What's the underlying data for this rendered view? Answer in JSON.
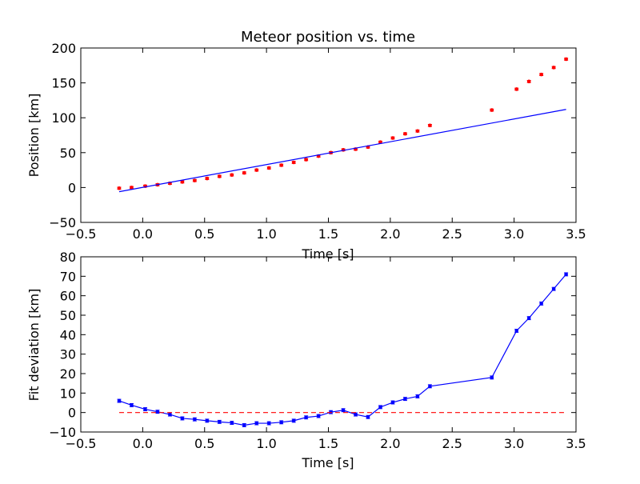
{
  "chart_data": [
    {
      "type": "scatter",
      "title": "Meteor position vs. time",
      "xlabel": "Time [s]",
      "ylabel": "Position [km]",
      "xlim": [
        -0.5,
        3.5
      ],
      "ylim": [
        -50,
        200
      ],
      "xticks": [
        "−0.5",
        "0.0",
        "0.5",
        "1.0",
        "1.5",
        "2.0",
        "2.5",
        "3.0",
        "3.5"
      ],
      "yticks": [
        "−50",
        "0",
        "50",
        "100",
        "150",
        "200"
      ],
      "grid": false,
      "series": [
        {
          "kind": "scatter-errorbar",
          "color": "#ff0000",
          "x": [
            -0.19,
            -0.09,
            0.02,
            0.12,
            0.22,
            0.32,
            0.42,
            0.52,
            0.62,
            0.72,
            0.82,
            0.92,
            1.02,
            1.12,
            1.22,
            1.32,
            1.42,
            1.52,
            1.62,
            1.72,
            1.82,
            1.92,
            2.02,
            2.12,
            2.22,
            2.32,
            2.82,
            3.02,
            3.12,
            3.22,
            3.32,
            3.42
          ],
          "y": [
            -1,
            0,
            2,
            4,
            6,
            8,
            10,
            13,
            16,
            18,
            21,
            25,
            28,
            32,
            36,
            40,
            45,
            50,
            54,
            55,
            58,
            65,
            71,
            77,
            81,
            89,
            111,
            141,
            152,
            162,
            172,
            184
          ],
          "yerr": 1.5
        },
        {
          "kind": "line",
          "color": "#0000ff",
          "x": [
            -0.19,
            3.42
          ],
          "y": [
            -6,
            112
          ]
        }
      ]
    },
    {
      "type": "line",
      "xlabel": "Time [s]",
      "ylabel": "Fit deviation [km]",
      "xlim": [
        -0.5,
        3.5
      ],
      "ylim": [
        -10,
        80
      ],
      "xticks": [
        "−0.5",
        "0.0",
        "0.5",
        "1.0",
        "1.5",
        "2.0",
        "2.5",
        "3.0",
        "3.5"
      ],
      "yticks": [
        "−10",
        "0",
        "10",
        "20",
        "30",
        "40",
        "50",
        "60",
        "70",
        "80"
      ],
      "grid": false,
      "series": [
        {
          "kind": "line-errorbar",
          "color": "#0000ff",
          "x": [
            -0.19,
            -0.09,
            0.02,
            0.12,
            0.22,
            0.32,
            0.42,
            0.52,
            0.62,
            0.72,
            0.82,
            0.92,
            1.02,
            1.12,
            1.22,
            1.32,
            1.42,
            1.52,
            1.62,
            1.72,
            1.82,
            1.92,
            2.02,
            2.12,
            2.22,
            2.32,
            2.82,
            3.02,
            3.12,
            3.22,
            3.32,
            3.42
          ],
          "y": [
            6,
            3.8,
            1.7,
            0.4,
            -1,
            -3,
            -3.5,
            -4.2,
            -4.8,
            -5.3,
            -6.5,
            -5.5,
            -5.5,
            -5,
            -4.2,
            -2.5,
            -1.8,
            0.2,
            1.2,
            -1,
            -2.3,
            2.8,
            5.2,
            7,
            8.3,
            13.5,
            18,
            42,
            48.5,
            56,
            63.5,
            71
          ],
          "yerr": 0.8
        },
        {
          "kind": "dashed-line",
          "color": "#ff0000",
          "x": [
            -0.19,
            3.42
          ],
          "y": [
            0,
            0
          ]
        }
      ]
    }
  ]
}
